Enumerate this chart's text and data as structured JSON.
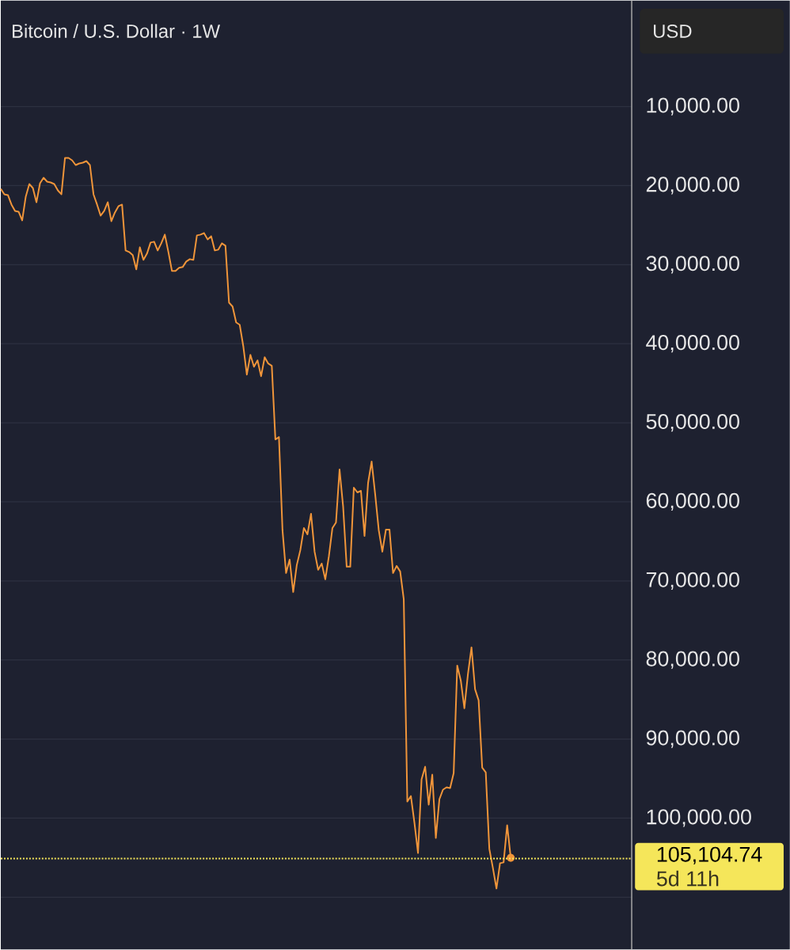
{
  "chart_data": {
    "type": "line",
    "title": "Bitcoin / U.S. Dollar · 1W",
    "categories": [
      null,
      null,
      null,
      null,
      null,
      null,
      null,
      null,
      null,
      null,
      null,
      null,
      null,
      null,
      null,
      null,
      null,
      null,
      null,
      null,
      null,
      null,
      null,
      null,
      null,
      null,
      null,
      null,
      null,
      null,
      null,
      null,
      null,
      null,
      null,
      null,
      null,
      null,
      null,
      null,
      null,
      null,
      null,
      null,
      null,
      null,
      null,
      null,
      null,
      null,
      null,
      null,
      null,
      null,
      null,
      null,
      null,
      null,
      null,
      null,
      null,
      null,
      null,
      null,
      null,
      null,
      null,
      null,
      null,
      null,
      null,
      null,
      null,
      null,
      null,
      null,
      null,
      null,
      null,
      null,
      null,
      null,
      null,
      null,
      null,
      null,
      null,
      null,
      null,
      null,
      null,
      null,
      null,
      null,
      null,
      null,
      null,
      null,
      null,
      null,
      null,
      null,
      null,
      null,
      null,
      null,
      null,
      null,
      null,
      null,
      null,
      null,
      null,
      null,
      null,
      null,
      null,
      null,
      null,
      null,
      null,
      null,
      null,
      null,
      null,
      null,
      null,
      null,
      null,
      null,
      null,
      null,
      null,
      null,
      null,
      null,
      null,
      null,
      null,
      null,
      null,
      null,
      null,
      null
    ],
    "series": [
      {
        "color": "#f0953a",
        "values": [
          20400,
          21100,
          21200,
          22400,
          23200,
          23300,
          24400,
          21400,
          19800,
          20300,
          22100,
          19700,
          19000,
          19500,
          19600,
          19800,
          20600,
          21100,
          16500,
          16500,
          16800,
          17400,
          17200,
          17100,
          16900,
          17400,
          21100,
          22400,
          23800,
          23200,
          22100,
          24500,
          23400,
          22600,
          22400,
          28200,
          28400,
          28800,
          30600,
          27800,
          29400,
          28600,
          27200,
          27100,
          28200,
          27300,
          26200,
          28400,
          30800,
          30800,
          30400,
          30300,
          29600,
          29300,
          29400,
          26300,
          26200,
          26000,
          26800,
          26400,
          28200,
          28100,
          27300,
          27600,
          34800,
          35300,
          37300,
          37600,
          40300,
          43900,
          41400,
          42900,
          42100,
          44100,
          41700,
          42500,
          42800,
          52100,
          51800,
          63600,
          69000,
          67300,
          71400,
          68000,
          66100,
          63300,
          64100,
          61500,
          66300,
          68600,
          67800,
          69800,
          66900,
          63300,
          62600,
          55900,
          60600,
          68200,
          68200,
          58200,
          58800,
          58600,
          64300,
          57600,
          54900,
          59100,
          63600,
          66300,
          63500,
          63500,
          69000,
          68100,
          68800,
          72300,
          97900,
          97200,
          100600,
          104400,
          95100,
          93500,
          98300,
          94500,
          102500,
          97600,
          96400,
          96100,
          96200,
          94300,
          80700,
          82600,
          86100,
          81800,
          78400,
          83700,
          85100,
          93600,
          94200,
          103900,
          106300,
          108900,
          105700,
          105600,
          100900,
          105000
        ]
      }
    ],
    "ylim": [
      116600,
      -3400
    ],
    "yticks": [
      {
        "value": 10000,
        "label": "10,000.00"
      },
      {
        "value": 20000,
        "label": "20,000.00"
      },
      {
        "value": 30000,
        "label": "30,000.00"
      },
      {
        "value": 40000,
        "label": "40,000.00"
      },
      {
        "value": 50000,
        "label": "50,000.00"
      },
      {
        "value": 60000,
        "label": "60,000.00"
      },
      {
        "value": 70000,
        "label": "70,000.00"
      },
      {
        "value": 80000,
        "label": "80,000.00"
      },
      {
        "value": 90000,
        "label": "90,000.00"
      },
      {
        "value": 100000,
        "label": "100,000.00"
      },
      {
        "value": 110000,
        "label": null
      }
    ],
    "grid": "y",
    "ref_lines": [
      {
        "axis": "y",
        "value": 105104.74,
        "label": "105,104.74",
        "color": "#f5e65a",
        "line_style": "dotted"
      }
    ],
    "annotations": [
      "USD",
      "5d 11h"
    ]
  }
}
